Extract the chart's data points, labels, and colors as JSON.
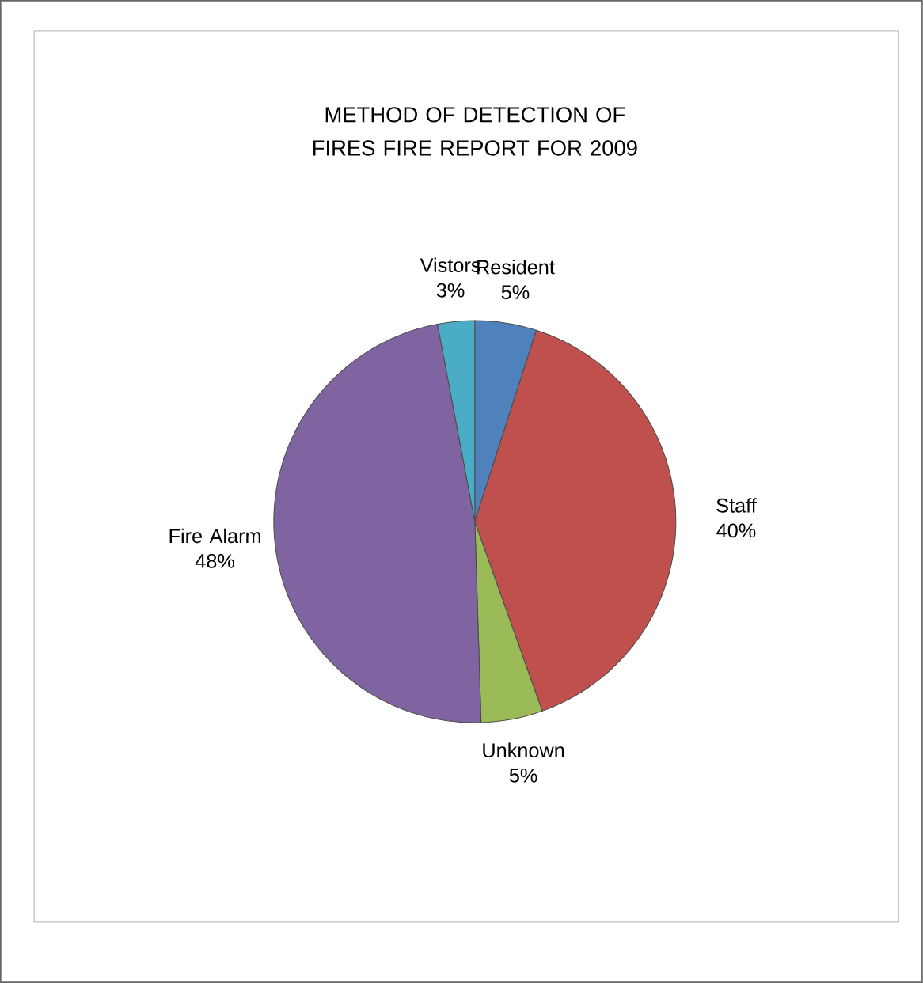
{
  "chart_data": {
    "type": "pie",
    "title": "METHOD OF DETECTION OF FIRES FIRE REPORT FOR 2009",
    "categories": [
      "Resident",
      "Staff",
      "Unknown",
      "Fire Alarm",
      "Vistors"
    ],
    "values": [
      5,
      40,
      5,
      48,
      3
    ],
    "value_labels": [
      "5%",
      "40%",
      "5%",
      "48%",
      "3%"
    ],
    "colors": [
      "#4f81bd",
      "#c0504d",
      "#9bbb59",
      "#8064a2",
      "#4bacc6"
    ]
  }
}
